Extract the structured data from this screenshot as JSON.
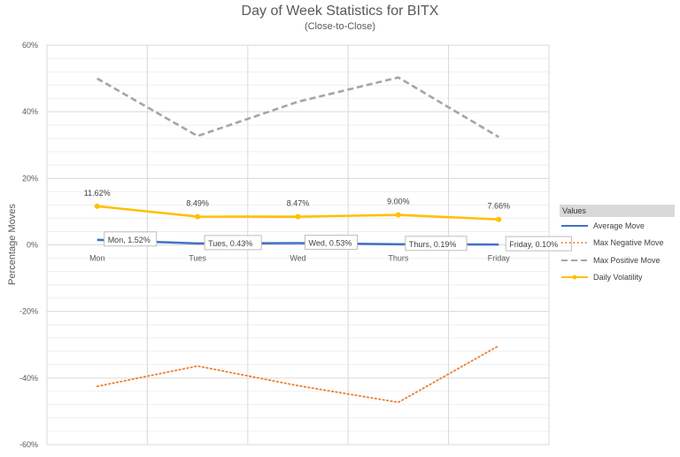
{
  "chart_data": {
    "type": "line",
    "title": "Day of Week Statistics for BITX",
    "subtitle": "(Close-to-Close)",
    "xlabel": "",
    "ylabel": "Percentage Moves",
    "categories": [
      "Mon",
      "Tues",
      "Wed",
      "Thurs",
      "Friday"
    ],
    "ylim": [
      -60,
      60
    ],
    "yticks": [
      "60%",
      "40%",
      "20%",
      "0%",
      "-20%",
      "-40%",
      "-60%"
    ],
    "grid": true,
    "legend_title": "Values",
    "legend_position": "right",
    "series": [
      {
        "name": "Average Move",
        "values": [
          1.52,
          0.43,
          0.53,
          0.19,
          0.1
        ],
        "color": "#4472c4",
        "style": "solid",
        "labels": [
          "Mon, 1.52%",
          "Tues, 0.43%",
          "Wed, 0.53%",
          "Thurs, 0.19%",
          "Friday, 0.10%"
        ]
      },
      {
        "name": "Max Negative Move",
        "values": [
          -42.5,
          -36.4,
          -42.3,
          -47.3,
          -30.3
        ],
        "color": "#ed7d31",
        "style": "dotted"
      },
      {
        "name": "Max Positive Move",
        "values": [
          50.0,
          32.7,
          43.0,
          50.3,
          32.4
        ],
        "color": "#a5a5a5",
        "style": "dashed"
      },
      {
        "name": "Daily Volatility",
        "values": [
          11.62,
          8.49,
          8.47,
          9.0,
          7.66
        ],
        "color": "#ffc000",
        "style": "solid-marker",
        "labels": [
          "11.62%",
          "8.49%",
          "8.47%",
          "9.00%",
          "7.66%"
        ]
      }
    ]
  }
}
